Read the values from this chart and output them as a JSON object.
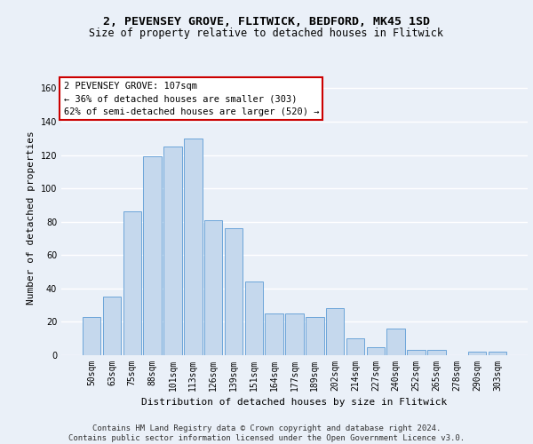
{
  "title": "2, PEVENSEY GROVE, FLITWICK, BEDFORD, MK45 1SD",
  "subtitle": "Size of property relative to detached houses in Flitwick",
  "xlabel": "Distribution of detached houses by size in Flitwick",
  "ylabel": "Number of detached properties",
  "categories": [
    "50sqm",
    "63sqm",
    "75sqm",
    "88sqm",
    "101sqm",
    "113sqm",
    "126sqm",
    "139sqm",
    "151sqm",
    "164sqm",
    "177sqm",
    "189sqm",
    "202sqm",
    "214sqm",
    "227sqm",
    "240sqm",
    "252sqm",
    "265sqm",
    "278sqm",
    "290sqm",
    "303sqm"
  ],
  "values": [
    23,
    35,
    86,
    119,
    125,
    130,
    81,
    76,
    44,
    25,
    25,
    23,
    28,
    10,
    5,
    16,
    3,
    3,
    0,
    2,
    2
  ],
  "bar_color": "#c5d8ed",
  "bar_edge_color": "#5b9bd5",
  "annotation_line1": "2 PEVENSEY GROVE: 107sqm",
  "annotation_line2": "← 36% of detached houses are smaller (303)",
  "annotation_line3": "62% of semi-detached houses are larger (520) →",
  "annotation_box_color": "#ffffff",
  "annotation_box_edge_color": "#cc0000",
  "ylim": [
    0,
    165
  ],
  "yticks": [
    0,
    20,
    40,
    60,
    80,
    100,
    120,
    140,
    160
  ],
  "bg_color": "#eaf0f8",
  "plot_bg_color": "#eaf0f8",
  "grid_color": "#ffffff",
  "footer_line1": "Contains HM Land Registry data © Crown copyright and database right 2024.",
  "footer_line2": "Contains public sector information licensed under the Open Government Licence v3.0.",
  "title_fontsize": 9.5,
  "subtitle_fontsize": 8.5,
  "axis_label_fontsize": 8,
  "tick_fontsize": 7,
  "annotation_fontsize": 7.5,
  "footer_fontsize": 6.5
}
